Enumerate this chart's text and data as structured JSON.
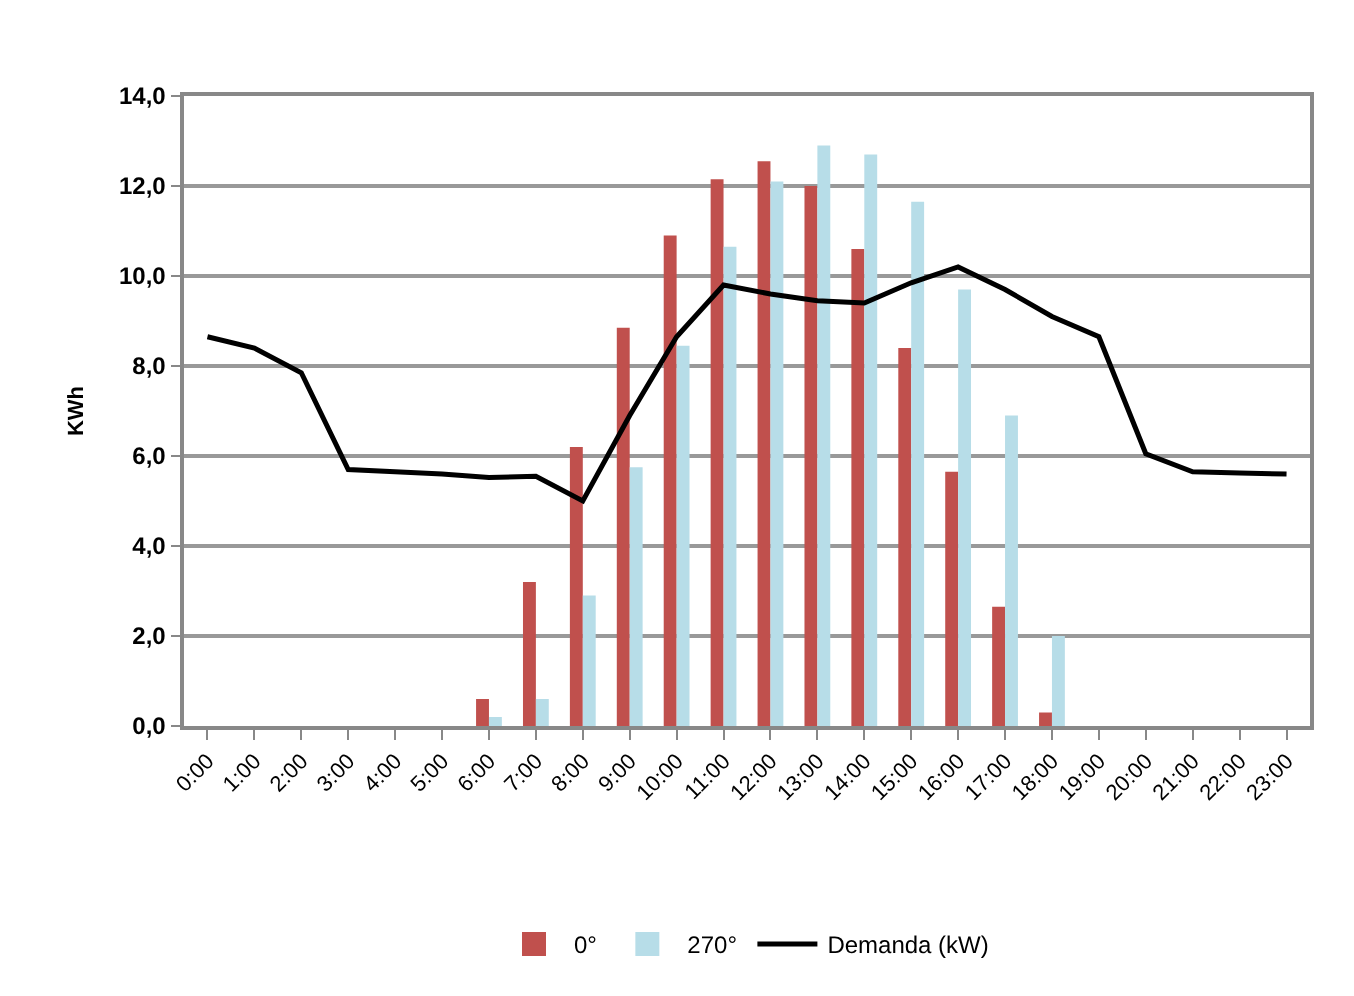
{
  "chart_data": {
    "type": "bar",
    "ylabel": "KWh",
    "categories": [
      "0:00",
      "1:00",
      "2:00",
      "3:00",
      "4:00",
      "5:00",
      "6:00",
      "7:00",
      "8:00",
      "9:00",
      "10:00",
      "11:00",
      "12:00",
      "13:00",
      "14:00",
      "15:00",
      "16:00",
      "17:00",
      "18:00",
      "19:00",
      "20:00",
      "21:00",
      "22:00",
      "23:00"
    ],
    "series": [
      {
        "name": "0°",
        "color": "#c0504d",
        "values": [
          0,
          0,
          0,
          0,
          0,
          0,
          0.6,
          3.2,
          6.2,
          8.85,
          10.9,
          12.15,
          12.55,
          12.0,
          10.6,
          8.4,
          5.65,
          2.65,
          0.3,
          0,
          0,
          0,
          0,
          0
        ]
      },
      {
        "name": "270°",
        "color": "#b7dde8",
        "values": [
          0,
          0,
          0,
          0,
          0,
          0,
          0.2,
          0.6,
          2.9,
          5.75,
          8.45,
          10.65,
          12.1,
          12.9,
          12.7,
          11.65,
          9.7,
          6.9,
          2.0,
          0,
          0,
          0,
          0,
          0
        ]
      },
      {
        "name": "Demanda (kW)",
        "type": "line",
        "color": "#000000",
        "values": [
          8.65,
          8.4,
          7.85,
          5.7,
          5.65,
          5.6,
          5.52,
          5.55,
          5.0,
          6.9,
          8.65,
          9.8,
          9.6,
          9.45,
          9.4,
          9.85,
          10.2,
          9.7,
          9.1,
          8.65,
          6.05,
          5.65,
          5.62,
          5.6
        ]
      }
    ],
    "ylim": [
      0,
      14
    ],
    "yticks": [
      {
        "value": 0,
        "label": "0,0"
      },
      {
        "value": 2,
        "label": "2,0"
      },
      {
        "value": 4,
        "label": "4,0"
      },
      {
        "value": 6,
        "label": "6,0"
      },
      {
        "value": 8,
        "label": "8,0"
      },
      {
        "value": 10,
        "label": "10,0"
      },
      {
        "value": 12,
        "label": "12,0"
      },
      {
        "value": 14,
        "label": "14,0"
      }
    ],
    "grid": "y",
    "legend": "bottom",
    "marker": "none",
    "line_style": "solid"
  }
}
